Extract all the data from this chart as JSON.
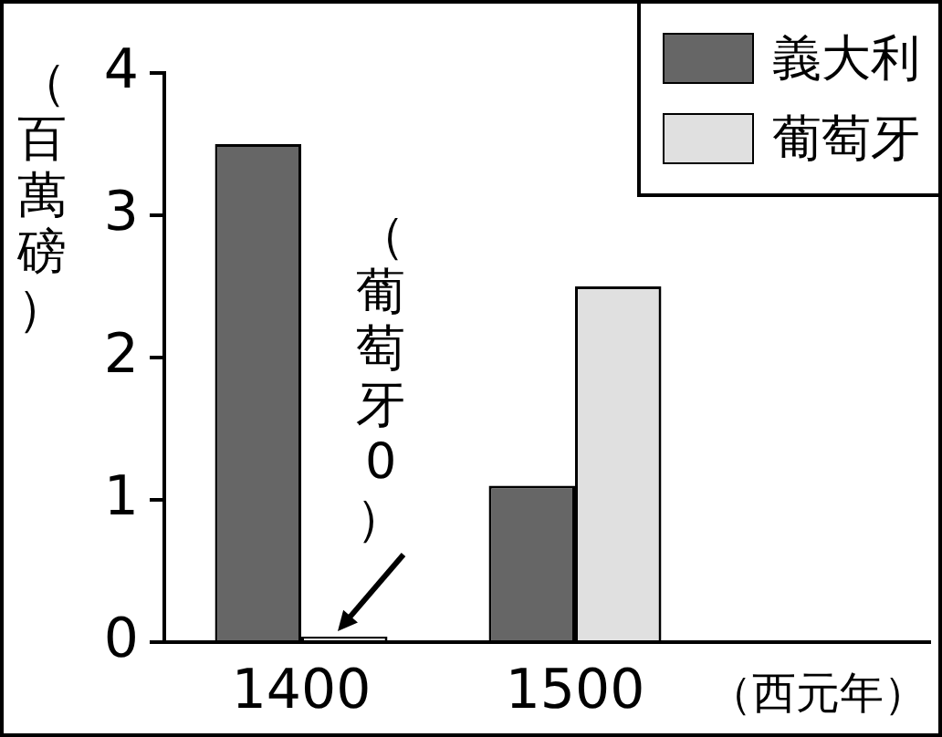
{
  "chart_data": {
    "type": "bar",
    "ylabel": "（百萬磅）",
    "xlabel": "（西元年）",
    "categories": [
      "1400",
      "1500"
    ],
    "series": [
      {
        "name": "義大利",
        "color": "#666666",
        "values": [
          3.5,
          1.1
        ]
      },
      {
        "name": "葡萄牙",
        "color": "#e0e0e0",
        "values": [
          0,
          2.5
        ]
      }
    ],
    "ylim": [
      0,
      4
    ],
    "yticks": [
      0,
      1,
      2,
      3,
      4
    ],
    "legend": "top right",
    "annotations": [
      {
        "text": "（葡萄牙0）",
        "x": "1400",
        "y": 0
      }
    ]
  }
}
